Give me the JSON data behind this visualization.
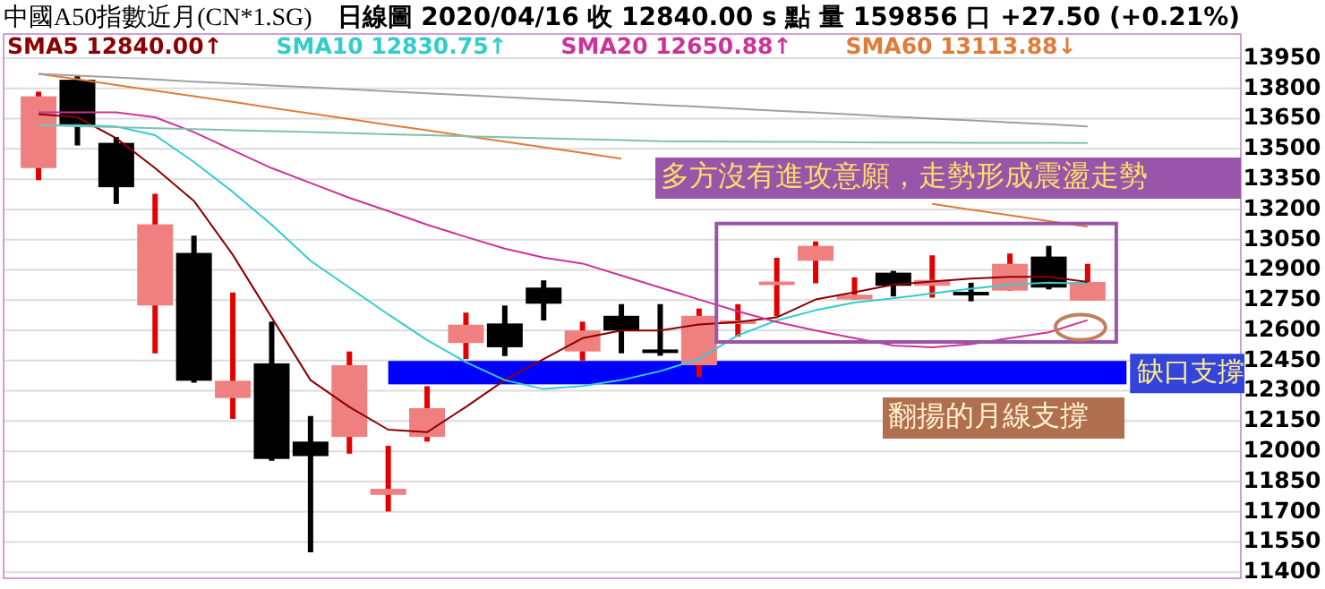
{
  "chart_data": {
    "type": "candlestick",
    "title": "中國A50指數近月(CN*1.SG)",
    "subtitle": "日線圖  2020/04/16  收 12840.00 s 點  量 159856 口  +27.50 (+0.21%)",
    "categories": [
      null,
      null,
      null,
      null,
      null,
      null,
      null,
      null,
      null,
      null,
      null,
      null,
      null,
      null,
      null,
      null,
      null,
      null,
      null,
      null,
      null,
      null,
      null,
      null,
      null,
      null,
      null,
      null
    ],
    "ohlc": [
      [
        13405,
        13784,
        13345,
        13761
      ],
      [
        13843,
        13864,
        13517,
        13618
      ],
      [
        13530,
        13559,
        13227,
        13310
      ],
      [
        12723,
        13277,
        12486,
        13126
      ],
      [
        12984,
        13070,
        12340,
        12350
      ],
      [
        12264,
        12788,
        12161,
        12350
      ],
      [
        12436,
        12643,
        11953,
        11962
      ],
      [
        12048,
        12175,
        11499,
        11976
      ],
      [
        12071,
        12495,
        11988,
        12427
      ],
      [
        11784,
        12027,
        11701,
        11814
      ],
      [
        12071,
        12323,
        12048,
        12214
      ],
      [
        12537,
        12688,
        12457,
        12628
      ],
      [
        12634,
        12723,
        12472,
        12516
      ],
      [
        12812,
        12848,
        12649,
        12732
      ],
      [
        12495,
        12643,
        12450,
        12599
      ],
      [
        12672,
        12730,
        12486,
        12599
      ],
      [
        12505,
        12730,
        12474,
        12497
      ],
      [
        12427,
        12708,
        12368,
        12672
      ],
      [
        12634,
        12730,
        12569,
        12649
      ],
      [
        12830,
        12960,
        12670,
        12842
      ],
      [
        12945,
        13041,
        12833,
        13019
      ],
      [
        12753,
        12863,
        12753,
        12777
      ],
      [
        12886,
        12895,
        12768,
        12821
      ],
      [
        12821,
        12972,
        12762,
        12850
      ],
      [
        12791,
        12836,
        12744,
        12783
      ],
      [
        12797,
        12981,
        12797,
        12930
      ],
      [
        12966,
        13019,
        12803,
        12812
      ],
      [
        12747,
        12930,
        12747,
        12840
      ]
    ],
    "colors": [
      "#f08080",
      "#000000",
      "#000000",
      "#f08080",
      "#000000",
      "#f08080",
      "#000000",
      "#000000",
      "#f08080",
      "#f08080",
      "#f08080",
      "#f08080",
      "#000000",
      "#000000",
      "#f08080",
      "#000000",
      "#000000",
      "#f08080",
      "#f08080",
      "#f08080",
      "#f08080",
      "#f08080",
      "#000000",
      "#f08080",
      "#000000",
      "#f08080",
      "#000000",
      "#f08080"
    ],
    "series": [
      {
        "type": "line",
        "name": "SMA5 12840.00↑",
        "color": "#8b0000",
        "values": [
          13672,
          13657,
          13553,
          13405,
          13242,
          12975,
          12664,
          12353,
          12220,
          12107,
          12095,
          12220,
          12353,
          12457,
          12561,
          12599,
          12599,
          12629,
          12641,
          12664,
          12753,
          12789,
          12827,
          12842,
          12857,
          12866,
          12866,
          12840
        ]
      },
      {
        "type": "line",
        "name": "SMA10 12830.75↑",
        "color": "#33cccc",
        "values": [
          13618,
          13618,
          13612,
          13568,
          13435,
          13287,
          13124,
          12946,
          12812,
          12679,
          12552,
          12442,
          12353,
          12309,
          12324,
          12353,
          12398,
          12457,
          12575,
          12649,
          12700,
          12738,
          12759,
          12783,
          12806,
          12827,
          12836,
          12831
        ]
      },
      {
        "type": "line",
        "name": "SMA20 12650.88↑",
        "color": "#cc3399",
        "values": [
          13681,
          13681,
          13681,
          13657,
          13583,
          13494,
          13405,
          13331,
          13257,
          13192,
          13124,
          13064,
          13005,
          12961,
          12931,
          12872,
          12812,
          12753,
          12694,
          12641,
          12599,
          12561,
          12525,
          12516,
          12531,
          12561,
          12590,
          12651
        ]
      },
      {
        "type": "line",
        "name": "SMA60 13113.88↓",
        "color": "#e07b39",
        "values": [
          13873,
          13845,
          13817,
          13789,
          13761,
          13733,
          13704,
          13676,
          13648,
          13620,
          13592,
          13564,
          13536,
          13508,
          13480,
          13452,
          null,
          null,
          null,
          null,
          null,
          null,
          null,
          13227,
          13199,
          13170,
          13142,
          13114
        ]
      },
      {
        "type": "line",
        "color": "#a0a0a0",
        "values": [
          13873,
          13863,
          13854,
          13844,
          13834,
          13825,
          13815,
          13805,
          13796,
          13786,
          13776,
          13767,
          13757,
          13747,
          13738,
          13728,
          13718,
          13709,
          13699,
          13689,
          13680,
          13670,
          13660,
          13651,
          13641,
          13631,
          13622,
          13612
        ]
      },
      {
        "type": "line",
        "color": "#80c0b0",
        "values": [
          13618,
          13613,
          13608,
          13603,
          13598,
          13593,
          13588,
          13583,
          13578,
          13573,
          13568,
          13563,
          13558,
          13553,
          13548,
          13543,
          13538,
          13537,
          13536,
          13535,
          13534,
          13533,
          13532,
          13532,
          13531,
          13530,
          13530,
          13529
        ]
      }
    ],
    "ylim": [
      11370,
      14070
    ],
    "yticks": [
      11400,
      11550,
      11700,
      11850,
      12000,
      12150,
      12300,
      12450,
      12600,
      12750,
      12900,
      13050,
      13200,
      13350,
      13500,
      13650,
      13800,
      13950
    ],
    "grid": "y",
    "bands": [
      {
        "axis": "y",
        "from": 12332,
        "to": 12448,
        "label": "缺口支撐",
        "color": "#0000ff"
      }
    ],
    "annotations": [
      "多方沒有進攻意願，走勢形成震盪走勢",
      "翻揚的月線支撐"
    ]
  }
}
